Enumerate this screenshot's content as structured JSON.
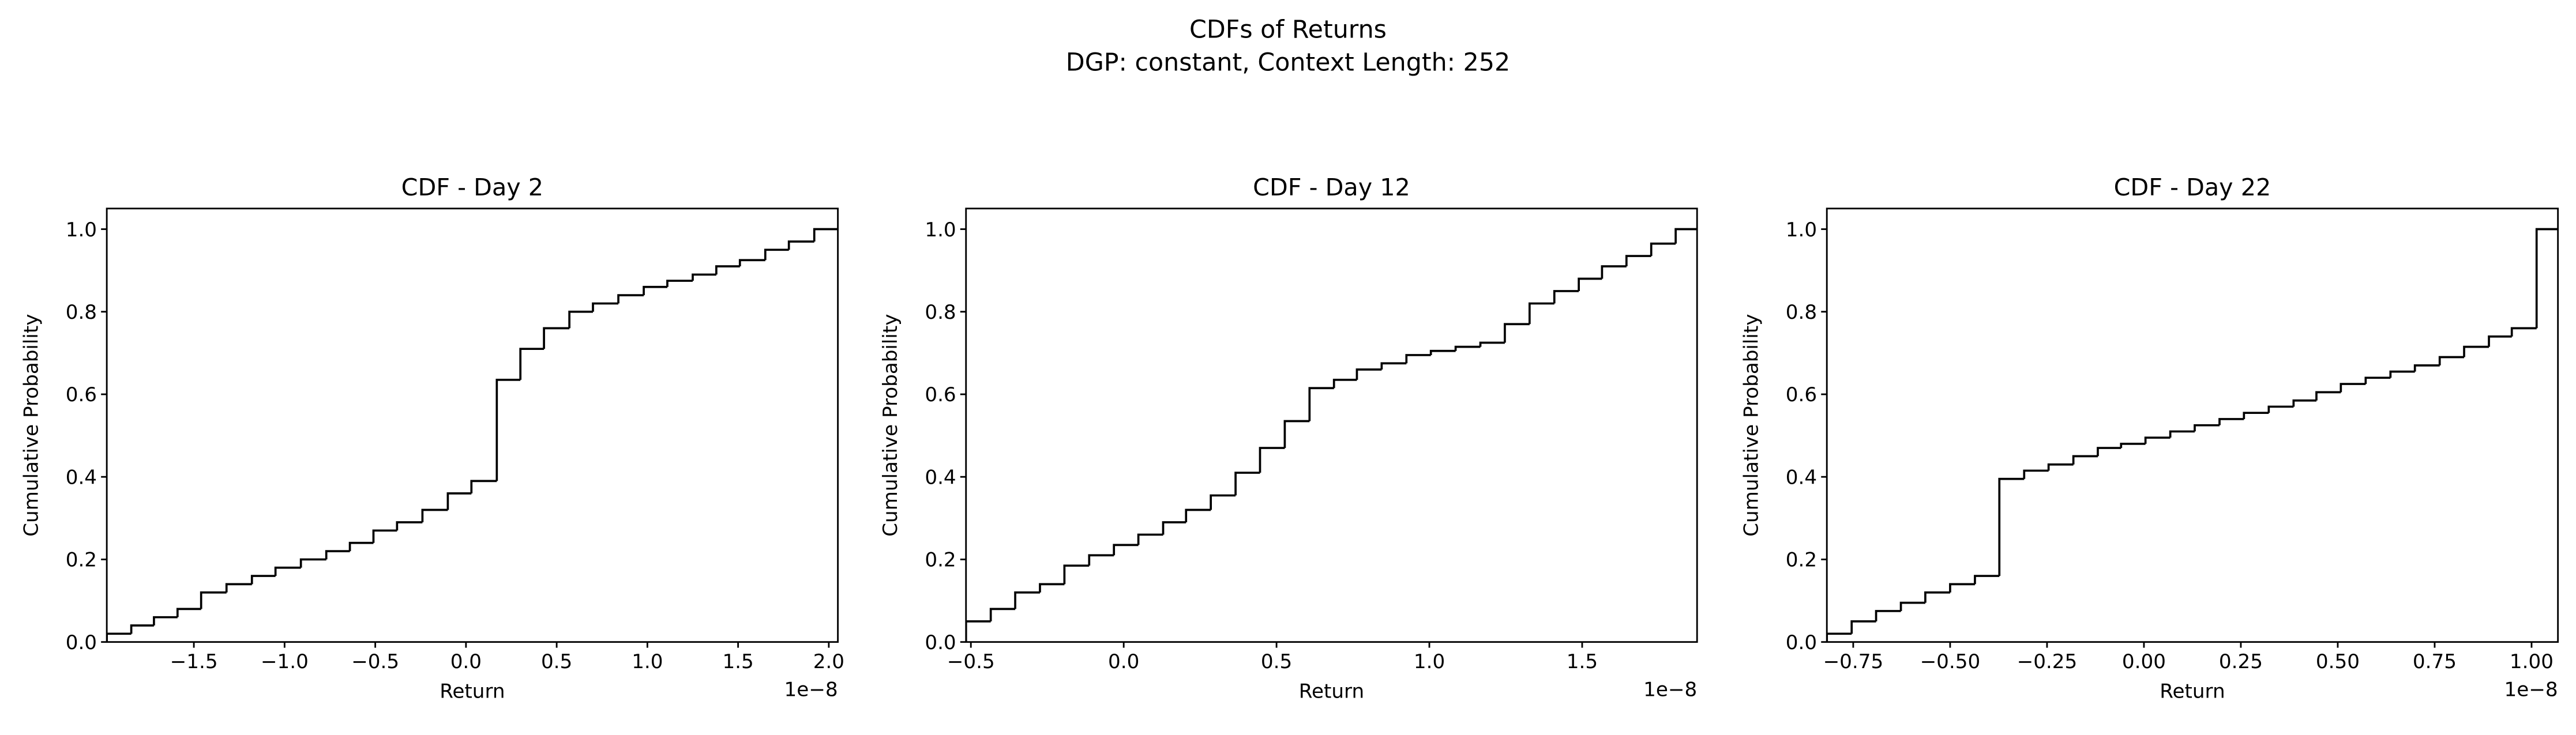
{
  "title": "CDFs of Returns",
  "subtitle": "DGP: constant, Context Length: 252",
  "chart_data": [
    {
      "type": "step",
      "title": "CDF - Day 2",
      "xlabel": "Return",
      "ylabel": "Cumulative Probability",
      "x_offset_label": "1e−8",
      "color": "#000000",
      "x": [
        -1.98,
        -1.845,
        -1.72,
        -1.59,
        -1.46,
        -1.32,
        -1.18,
        -1.05,
        -0.91,
        -0.77,
        -0.64,
        -0.51,
        -0.38,
        -0.24,
        -0.1,
        0.03,
        0.17,
        0.3,
        0.43,
        0.57,
        0.7,
        0.84,
        0.98,
        1.11,
        1.25,
        1.38,
        1.51,
        1.65,
        1.78,
        1.92
      ],
      "values": [
        0.02,
        0.04,
        0.06,
        0.08,
        0.12,
        0.14,
        0.16,
        0.18,
        0.2,
        0.22,
        0.24,
        0.27,
        0.29,
        0.32,
        0.36,
        0.39,
        0.635,
        0.71,
        0.76,
        0.8,
        0.82,
        0.84,
        0.86,
        0.875,
        0.89,
        0.91,
        0.925,
        0.95,
        0.97,
        1.0
      ],
      "xlim": [
        -1.98,
        2.05
      ],
      "ylim": [
        0,
        1.05
      ],
      "xticks": [
        {
          "value": -1.5,
          "label": "−1.5"
        },
        {
          "value": -1.0,
          "label": "−1.0"
        },
        {
          "value": -0.5,
          "label": "−0.5"
        },
        {
          "value": 0.0,
          "label": "0.0"
        },
        0.5,
        {
          "value": 1.0,
          "label": "1.0"
        },
        1.5,
        {
          "value": 2.0,
          "label": "2.0"
        }
      ],
      "yticks": [
        {
          "value": 0,
          "label": "0.0"
        },
        0.2,
        0.4,
        0.6,
        0.8,
        {
          "value": 1,
          "label": "1.0"
        }
      ]
    },
    {
      "type": "step",
      "title": "CDF - Day 12",
      "xlabel": "Return",
      "ylabel": "Cumulative Probability",
      "x_offset_label": "1e−8",
      "color": "#000000",
      "x": [
        -0.516,
        -0.435,
        -0.355,
        -0.274,
        -0.194,
        -0.113,
        -0.032,
        0.048,
        0.129,
        0.204,
        0.285,
        0.366,
        0.446,
        0.527,
        0.608,
        0.688,
        0.763,
        0.844,
        0.925,
        1.005,
        1.086,
        1.167,
        1.247,
        1.328,
        1.409,
        1.489,
        1.565,
        1.645,
        1.726,
        1.806
      ],
      "values": [
        0.05,
        0.08,
        0.12,
        0.14,
        0.185,
        0.21,
        0.235,
        0.26,
        0.29,
        0.32,
        0.355,
        0.41,
        0.47,
        0.535,
        0.615,
        0.635,
        0.66,
        0.675,
        0.695,
        0.705,
        0.715,
        0.725,
        0.77,
        0.82,
        0.85,
        0.88,
        0.91,
        0.935,
        0.965,
        1.0
      ],
      "xlim": [
        -0.516,
        1.876
      ],
      "ylim": [
        0,
        1.05
      ],
      "xticks": [
        {
          "value": -0.5,
          "label": "−0.5"
        },
        {
          "value": 0.0,
          "label": "0.0"
        },
        0.5,
        {
          "value": 1.0,
          "label": "1.0"
        },
        1.5
      ],
      "yticks": [
        {
          "value": 0,
          "label": "0.0"
        },
        0.2,
        0.4,
        0.6,
        0.8,
        {
          "value": 1,
          "label": "1.0"
        }
      ]
    },
    {
      "type": "step",
      "title": "CDF - Day 22",
      "xlabel": "Return",
      "ylabel": "Cumulative Probability",
      "x_offset_label": "1e−8",
      "color": "#000000",
      "x": [
        -0.818,
        -0.754,
        -0.691,
        -0.627,
        -0.564,
        -0.5,
        -0.436,
        -0.373,
        -0.309,
        -0.246,
        -0.182,
        -0.119,
        -0.059,
        0.004,
        0.068,
        0.131,
        0.195,
        0.258,
        0.322,
        0.386,
        0.445,
        0.508,
        0.572,
        0.636,
        0.699,
        0.763,
        0.826,
        0.89,
        0.949,
        1.013
      ],
      "values": [
        0.02,
        0.05,
        0.075,
        0.095,
        0.12,
        0.14,
        0.16,
        0.395,
        0.415,
        0.43,
        0.45,
        0.47,
        0.48,
        0.495,
        0.51,
        0.525,
        0.54,
        0.555,
        0.57,
        0.585,
        0.605,
        0.625,
        0.64,
        0.655,
        0.67,
        0.69,
        0.715,
        0.74,
        0.76,
        1.0
      ],
      "xlim": [
        -0.818,
        1.068
      ],
      "ylim": [
        0,
        1.05
      ],
      "xticks": [
        {
          "value": -0.75,
          "label": "−0.75"
        },
        {
          "value": -0.5,
          "label": "−0.50"
        },
        {
          "value": -0.25,
          "label": "−0.25"
        },
        {
          "value": 0.0,
          "label": "0.00"
        },
        0.25,
        {
          "value": 0.5,
          "label": "0.50"
        },
        0.75,
        {
          "value": 1.0,
          "label": "1.00"
        }
      ],
      "yticks": [
        {
          "value": 0,
          "label": "0.0"
        },
        0.2,
        0.4,
        0.6,
        0.8,
        {
          "value": 1,
          "label": "1.0"
        }
      ]
    }
  ]
}
